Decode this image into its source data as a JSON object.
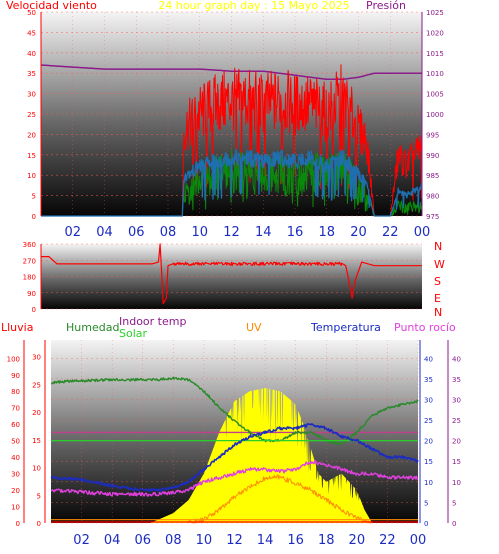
{
  "header": {
    "left_title": "Velocidad viento",
    "center_title": "24 hour graph day : 15 Mayo 2025",
    "right_title": "Presión"
  },
  "x_ticks": [
    "02",
    "04",
    "06",
    "08",
    "10",
    "12",
    "14",
    "16",
    "18",
    "20",
    "22",
    "00"
  ],
  "colors": {
    "wind_red": "#ff0000",
    "wind_blue": "#1e6fb0",
    "wind_green": "#0a8a0a",
    "pressure": "#8b1a8b",
    "humidity": "#2a8a2a",
    "solar": "#ffff00",
    "indoor": "#c0408c",
    "uv": "#ff8c00",
    "temp": "#1c2cc0",
    "dew": "#e040e0",
    "rain": "#ff0000"
  },
  "panel3_labels": {
    "lluvia": "Lluvia",
    "humedad": "Humedad",
    "indoor_temp": "Indoor temp",
    "solar": "Solar",
    "uv": "UV",
    "temperatura": "Temperatura",
    "punto_rocio": "Punto rocío"
  },
  "direction_letters": [
    "N",
    "W",
    "S",
    "E",
    "N"
  ],
  "chart_data": [
    {
      "type": "line",
      "id": "wind-pressure",
      "left_axis_ticks": [
        0,
        5,
        10,
        15,
        20,
        25,
        30,
        35,
        40,
        45,
        50
      ],
      "right_axis_ticks": [
        975,
        980,
        985,
        990,
        995,
        1000,
        1005,
        1010,
        1015,
        1020,
        1025
      ],
      "ylim_left": [
        0,
        50
      ],
      "ylim_right": [
        975,
        1025
      ],
      "x_hours": [
        0,
        24
      ],
      "pressure": {
        "x": [
          0,
          2,
          4,
          6,
          8,
          10,
          12,
          14,
          16,
          17,
          18,
          19,
          20,
          21,
          22,
          23,
          24
        ],
        "y": [
          1012,
          1011.5,
          1011,
          1011,
          1011,
          1011,
          1010.5,
          1010.5,
          1009.5,
          1009,
          1008.5,
          1008.5,
          1009,
          1010,
          1010,
          1010,
          1010
        ]
      },
      "gust_envelope": {
        "x": [
          0,
          8.9,
          9,
          10,
          11,
          12,
          13,
          14,
          15,
          16,
          17,
          18,
          19,
          20,
          20.5,
          21,
          22,
          22.5,
          23,
          24
        ],
        "y": [
          0,
          0,
          20,
          24,
          26,
          27,
          27,
          26,
          27,
          26,
          26,
          24,
          28,
          20,
          18,
          0,
          0,
          14,
          12,
          16
        ]
      },
      "avg_envelope": {
        "x": [
          0,
          8.9,
          9,
          10,
          11,
          12,
          13,
          14,
          15,
          16,
          17,
          18,
          19,
          20,
          20.5,
          21,
          22,
          22.5,
          23,
          24
        ],
        "y": [
          0,
          0,
          9,
          12,
          13,
          14,
          14,
          13,
          14,
          13,
          14,
          12,
          14,
          10,
          8,
          0,
          0,
          6,
          5,
          7
        ]
      },
      "speed_envelope": {
        "x": [
          0,
          8.9,
          9,
          10,
          11,
          12,
          13,
          14,
          15,
          16,
          17,
          18,
          19,
          20,
          20.5,
          21,
          22,
          22.5,
          23,
          24
        ],
        "y": [
          0,
          0,
          5,
          8,
          9,
          10,
          10,
          9,
          10,
          9,
          10,
          9,
          10,
          7,
          5,
          0,
          0,
          3,
          2,
          3
        ]
      }
    },
    {
      "type": "line",
      "id": "wind-direction",
      "left_axis_ticks": [
        0,
        90,
        180,
        270,
        360
      ],
      "ylim": [
        0,
        360
      ],
      "direction": {
        "x": [
          0,
          0.5,
          1,
          2,
          4,
          6,
          7,
          7.4,
          7.5,
          7.7,
          7.9,
          8,
          8.3,
          9,
          10,
          12,
          14,
          16,
          18,
          19,
          19.2,
          19.6,
          19.8,
          20.2,
          20.6,
          21,
          24
        ],
        "y": [
          290,
          290,
          250,
          250,
          250,
          250,
          250,
          260,
          360,
          30,
          60,
          240,
          250,
          250,
          250,
          250,
          250,
          250,
          250,
          250,
          240,
          60,
          160,
          260,
          250,
          240,
          240
        ]
      }
    },
    {
      "type": "line",
      "id": "thermo-solar",
      "lluvia_ticks": [
        0,
        10,
        20,
        30,
        40,
        50,
        60,
        70,
        80,
        90,
        100
      ],
      "humedad_ticks": [
        0,
        5,
        10,
        15,
        20,
        25,
        30
      ],
      "temp_ticks": [
        0,
        5,
        10,
        15,
        20,
        25,
        30,
        35,
        40
      ],
      "ylim_percent": [
        0,
        100
      ],
      "ylim_temp": [
        0,
        40
      ],
      "humidity": {
        "x": [
          0,
          1,
          4,
          7,
          8,
          9,
          10,
          11,
          12,
          13,
          14,
          15,
          16,
          17,
          18,
          19,
          20,
          21,
          22,
          23,
          24
        ],
        "y": [
          85,
          86,
          87,
          87,
          88,
          87,
          80,
          70,
          62,
          55,
          50,
          50,
          55,
          55,
          50,
          48,
          55,
          65,
          70,
          72,
          74
        ]
      },
      "indoor_temp": {
        "x": [
          0,
          24
        ],
        "y": [
          22,
          22
        ]
      },
      "solar": {
        "x": [
          6.5,
          7,
          8,
          9,
          10,
          11,
          12,
          13,
          14,
          15,
          16,
          16.5,
          17,
          17.5,
          18,
          19,
          20,
          20.5,
          21,
          24
        ],
        "y": [
          0,
          2,
          6,
          14,
          30,
          55,
          74,
          80,
          82,
          80,
          72,
          60,
          45,
          30,
          25,
          30,
          20,
          8,
          0,
          0
        ]
      },
      "uv_band": {
        "x": [
          0,
          24
        ],
        "y": [
          2,
          2
        ]
      },
      "uv_index": {
        "x": [
          9,
          10,
          11,
          12,
          13,
          14,
          15,
          16,
          17,
          18,
          19,
          20,
          21
        ],
        "y": [
          0,
          2,
          8,
          16,
          22,
          27,
          28,
          24,
          20,
          14,
          8,
          3,
          0
        ]
      },
      "temperature": {
        "x": [
          0,
          2,
          4,
          6,
          7,
          8,
          9,
          10,
          11,
          12,
          13,
          14,
          15,
          16,
          17,
          18,
          19,
          20,
          21,
          22,
          23,
          24
        ],
        "y": [
          11,
          10.5,
          9,
          8,
          8,
          8.5,
          10,
          13,
          16,
          19,
          21,
          22,
          23,
          23,
          24,
          23,
          21,
          20,
          18,
          16,
          16,
          15
        ]
      },
      "dew_point": {
        "x": [
          0,
          2,
          4,
          6,
          7,
          8,
          9,
          10,
          11,
          12,
          13,
          14,
          15,
          16,
          17,
          18,
          19,
          20,
          21,
          22,
          23,
          24
        ],
        "y": [
          8,
          7.5,
          7,
          7,
          7,
          7.5,
          8,
          10,
          11,
          12,
          13,
          13,
          12.5,
          13,
          15,
          14,
          13,
          12,
          12,
          11,
          11,
          11
        ]
      },
      "rain": {
        "x": [
          0,
          24
        ],
        "y": [
          0,
          0
        ]
      }
    }
  ]
}
